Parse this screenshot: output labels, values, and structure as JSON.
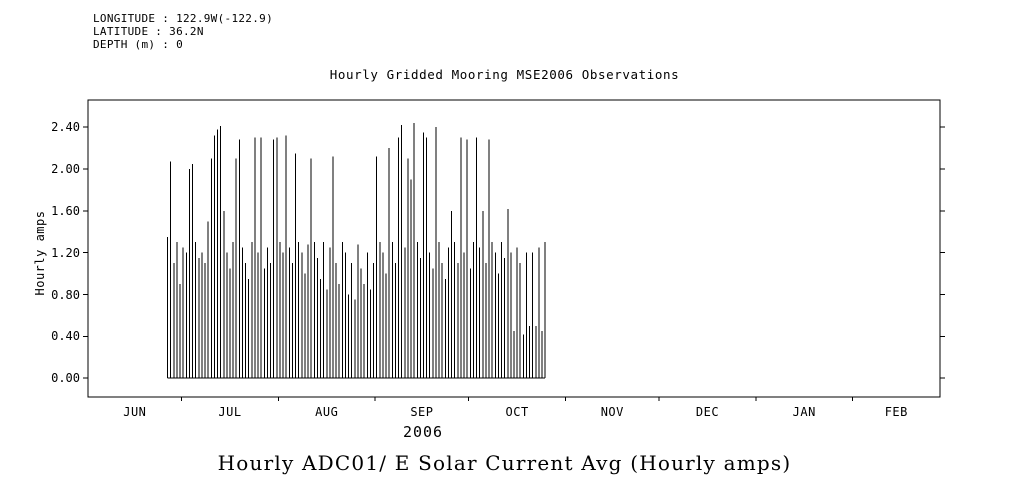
{
  "header": {
    "line1": "LONGITUDE : 122.9W(-122.9)",
    "line2": "LATITUDE : 36.2N",
    "line3": "DEPTH (m) : 0"
  },
  "chart_data": {
    "type": "line",
    "title": "Hourly Gridded Mooring MSE2006 Observations",
    "bottom_title": "Hourly ADC01/ E Solar Current Avg (Hourly amps)",
    "ylabel": "Hourly amps",
    "xlabel": "2006",
    "y_tick_values": [
      0.0,
      0.4,
      0.8,
      1.2,
      1.6,
      2.0,
      2.4
    ],
    "y_tick_labels": [
      "0.00",
      "0.40",
      "0.80",
      "1.20",
      "1.60",
      "2.00",
      "2.40"
    ],
    "ylim": [
      -0.18,
      2.66
    ],
    "x_tick_labels": [
      "JUN",
      "JUL",
      "AUG",
      "SEP",
      "OCT",
      "NOV",
      "DEC",
      "JAN",
      "FEB"
    ],
    "month_days": [
      30,
      31,
      31,
      30,
      31,
      30,
      31,
      31,
      28
    ],
    "grid": false,
    "legend": "none",
    "series": [
      {
        "name": "Hourly ADC01/ E Solar Current Avg",
        "units": "Hourly amps",
        "description": "Dense daily solar spikes rising from 0 each day; values shown are estimated daily peak amplitudes from late JUN through mid OCT 2006; no data NOV-FEB.",
        "start_day_offset_from_jun1": 25,
        "baseline_value": 0.0,
        "daily_peak_amps": [
          1.35,
          2.07,
          1.1,
          1.3,
          0.9,
          1.25,
          1.2,
          2.0,
          2.05,
          1.3,
          1.15,
          1.2,
          1.1,
          1.5,
          2.1,
          2.32,
          2.38,
          2.41,
          1.6,
          1.2,
          1.05,
          1.3,
          2.1,
          2.28,
          1.25,
          1.1,
          0.95,
          1.3,
          2.3,
          1.2,
          2.3,
          1.05,
          1.25,
          1.1,
          2.28,
          2.3,
          1.3,
          1.2,
          2.32,
          1.25,
          1.1,
          2.15,
          1.3,
          1.2,
          1.0,
          1.28,
          2.1,
          1.3,
          1.15,
          0.95,
          1.3,
          0.85,
          1.25,
          2.12,
          1.1,
          0.9,
          1.3,
          1.2,
          0.8,
          1.1,
          0.75,
          1.28,
          1.05,
          0.9,
          1.2,
          0.85,
          1.1,
          2.12,
          1.3,
          1.2,
          1.0,
          2.2,
          1.3,
          1.1,
          2.3,
          2.42,
          1.25,
          2.1,
          1.9,
          2.44,
          1.3,
          1.15,
          2.35,
          2.3,
          1.2,
          1.05,
          2.4,
          1.3,
          1.1,
          0.95,
          1.25,
          1.6,
          1.3,
          1.1,
          2.3,
          1.2,
          2.28,
          1.05,
          1.3,
          2.3,
          1.25,
          1.6,
          1.1,
          2.28,
          1.3,
          1.2,
          1.0,
          1.3,
          1.15,
          1.62,
          1.2,
          0.45,
          1.25,
          1.1,
          0.42,
          1.2,
          0.5,
          1.2,
          0.5,
          1.25,
          0.45,
          1.3
        ]
      }
    ],
    "colors": {
      "line": "#000000",
      "background": "#ffffff"
    }
  }
}
